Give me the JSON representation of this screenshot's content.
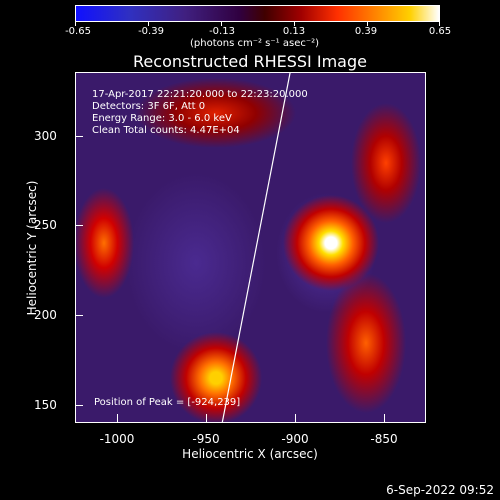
{
  "colorbar": {
    "ticks": [
      "-0.65",
      "-0.39",
      "-0.13",
      "0.13",
      "0.39",
      "0.65"
    ],
    "units": "(photons cm⁻² s⁻¹ asec⁻²)"
  },
  "title": "Reconstructed RHESSI Image",
  "info": {
    "time": "17-Apr-2017 22:21:20.000 to 22:23:20.000",
    "detectors": "Detectors: 3F 6F, Att 0",
    "energy": "Energy Range: 3.0 - 6.0 keV",
    "clean": "Clean    Total counts: 4.47E+04",
    "peak": "Position of Peak = [-924,239]"
  },
  "x_ticks": [
    "-1000",
    "-950",
    "-900",
    "-850"
  ],
  "y_ticks": [
    "300",
    "250",
    "200",
    "150"
  ],
  "x_label": "Heliocentric X (arcsec)",
  "y_label": "Heliocentric Y (arcsec)",
  "date": "6-Sep-2022 09:52"
}
